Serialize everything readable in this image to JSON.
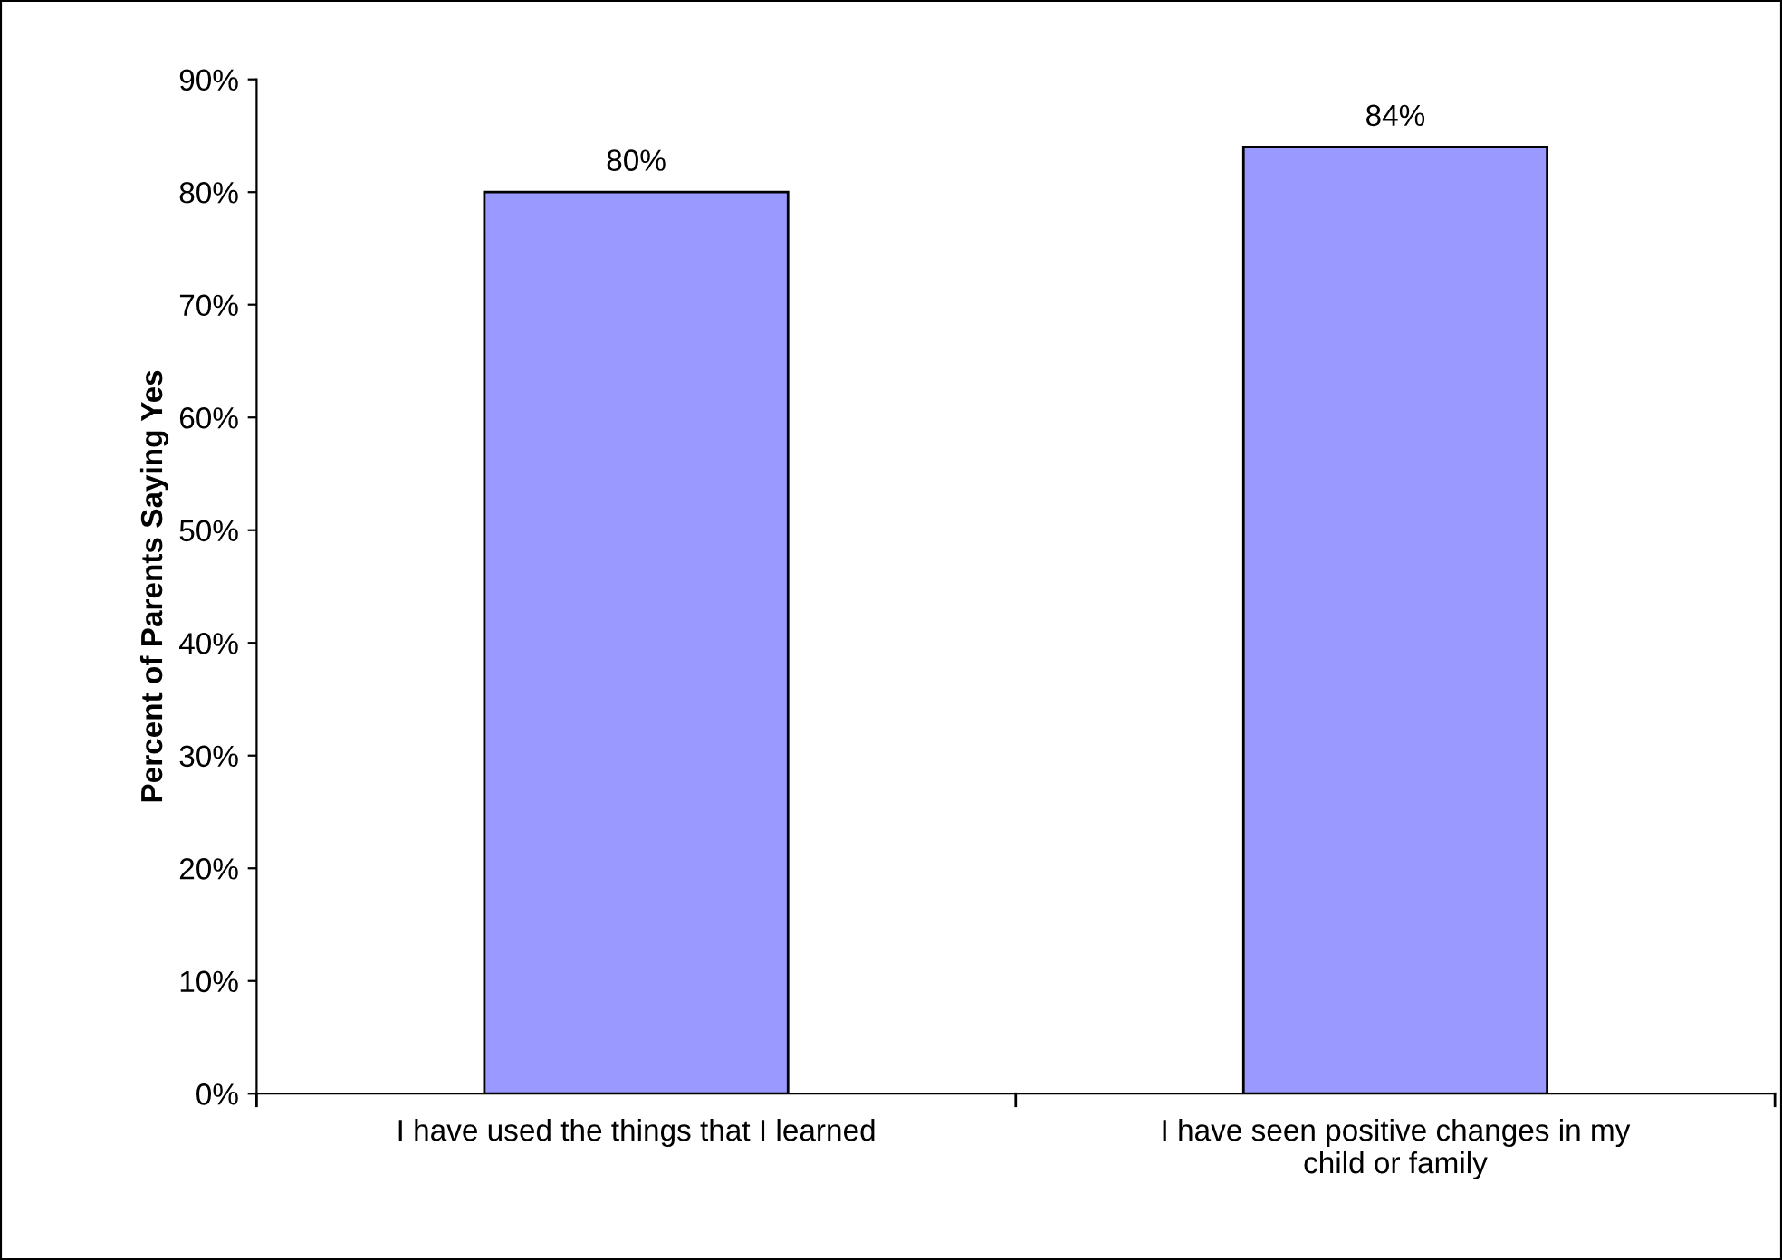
{
  "chart_data": {
    "type": "bar",
    "ylabel": "Percent of Parents Saying Yes",
    "categories": [
      "I have used the things that I learned",
      "I have seen positive changes in my\nchild or family"
    ],
    "values": [
      80,
      84
    ],
    "value_labels": [
      "80%",
      "84%"
    ],
    "color": "#9999ff",
    "ylim": [
      0,
      90
    ],
    "yticks": [
      {
        "value": 0,
        "label": "0%"
      },
      {
        "value": 10,
        "label": "10%"
      },
      {
        "value": 20,
        "label": "20%"
      },
      {
        "value": 30,
        "label": "30%"
      },
      {
        "value": 40,
        "label": "40%"
      },
      {
        "value": 50,
        "label": "50%"
      },
      {
        "value": 60,
        "label": "60%"
      },
      {
        "value": 70,
        "label": "70%"
      },
      {
        "value": 80,
        "label": "80%"
      },
      {
        "value": 90,
        "label": "90%"
      }
    ],
    "grid": false,
    "legend": false
  }
}
